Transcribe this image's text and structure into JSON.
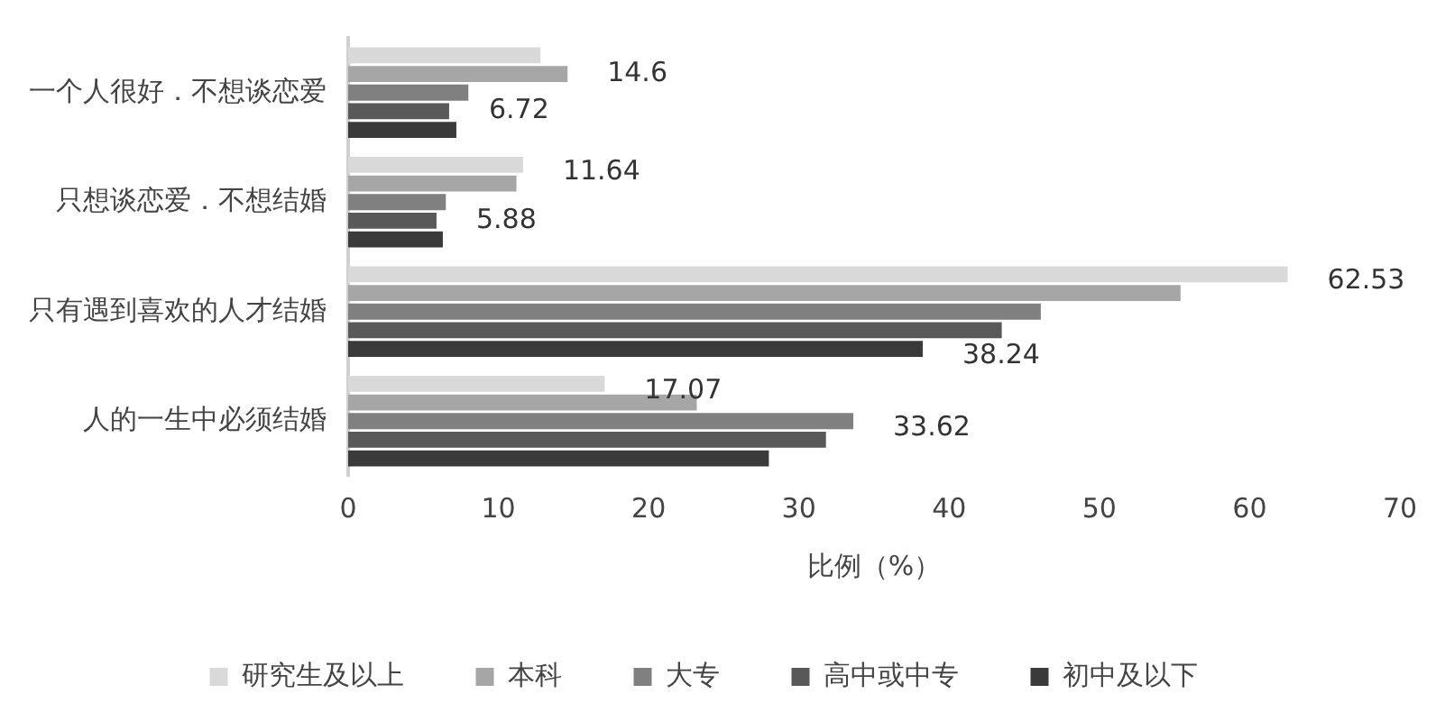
{
  "chart_data": {
    "type": "bar",
    "orientation": "horizontal",
    "xlabel": "比例（%）",
    "categories": [
      "一个人很好．不想谈恋爱",
      "只想谈恋爱．不想结婚",
      "只有遇到喜欢的人才结婚",
      "人的一生中必须结婚"
    ],
    "series": [
      {
        "name": "研究生及以上",
        "color": "#d9d9d9",
        "values": [
          12.8,
          11.64,
          62.53,
          17.07
        ],
        "value_labels": [
          null,
          "11.64",
          "62.53",
          "17.07"
        ]
      },
      {
        "name": "本科",
        "color": "#a6a6a6",
        "values": [
          14.6,
          11.2,
          55.4,
          23.2
        ],
        "value_labels": [
          "14.6",
          null,
          null,
          null
        ]
      },
      {
        "name": "大专",
        "color": "#808080",
        "values": [
          8.0,
          6.5,
          46.1,
          33.62
        ],
        "value_labels": [
          null,
          null,
          null,
          "33.62"
        ]
      },
      {
        "name": "高中或中专",
        "color": "#595959",
        "values": [
          6.72,
          5.88,
          43.5,
          31.8
        ],
        "value_labels": [
          "6.72",
          "5.88",
          null,
          null
        ]
      },
      {
        "name": "初中及以下",
        "color": "#3a3a3a",
        "values": [
          7.2,
          6.3,
          38.24,
          28.0
        ],
        "value_labels": [
          null,
          null,
          "38.24",
          null
        ]
      }
    ],
    "xlim": [
      0,
      70
    ],
    "xticks": [
      0,
      10,
      20,
      30,
      40,
      50,
      60,
      70
    ],
    "grid": false,
    "legend": "bottom"
  }
}
